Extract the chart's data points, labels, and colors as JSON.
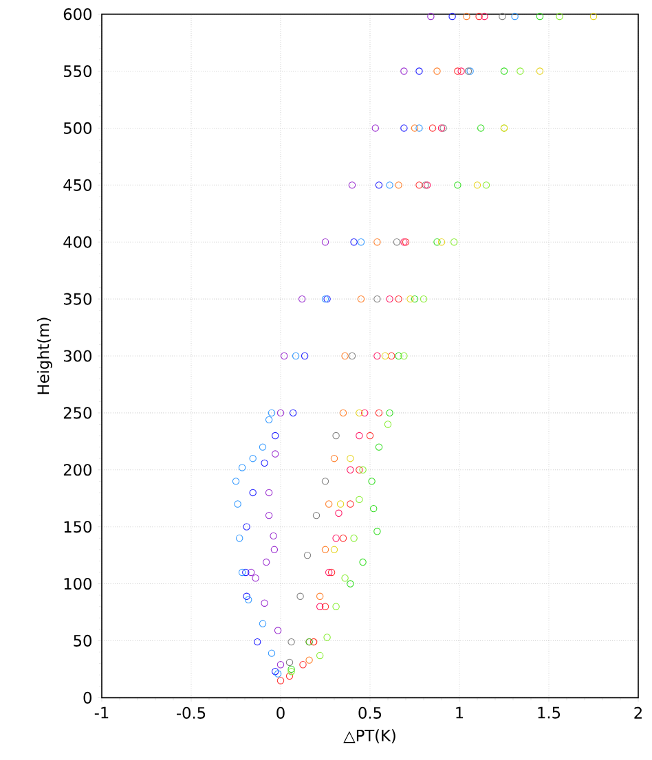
{
  "chart_data": {
    "type": "scatter",
    "xlabel": "△PT(K)",
    "ylabel": "Height(m)",
    "xlim": [
      -1,
      2
    ],
    "xticks": [
      -1,
      -0.5,
      0,
      0.5,
      1,
      1.5,
      2
    ],
    "ylim": [
      0,
      600
    ],
    "yticks": [
      0,
      50,
      100,
      150,
      200,
      250,
      300,
      350,
      400,
      450,
      500,
      550,
      600
    ],
    "grid": true,
    "marker": "circle",
    "series": [
      {
        "color": "#9b30d0",
        "x": [
          0,
          -0.015,
          -0.09,
          -0.14,
          -0.165,
          -0.08,
          -0.035,
          -0.04,
          -0.065,
          -0.065,
          -0.03,
          0,
          0.02,
          0.12,
          0.25,
          0.4,
          0.53,
          0.69,
          0.84
        ],
        "values": [
          29,
          59,
          83,
          105,
          110,
          119,
          130,
          142,
          160,
          180,
          214,
          250,
          300,
          350,
          400,
          450,
          500,
          550,
          598
        ]
      },
      {
        "color": "#2020ff",
        "x": [
          -0.03,
          -0.13,
          -0.19,
          -0.195,
          -0.19,
          -0.155,
          -0.09,
          -0.03,
          0.07,
          0.135,
          0.26,
          0.41,
          0.55,
          0.69,
          0.775,
          0.96
        ],
        "values": [
          23,
          49,
          89,
          110,
          150,
          180,
          206,
          230,
          250,
          300,
          350,
          400,
          450,
          500,
          550,
          598
        ]
      },
      {
        "color": "#3399ff",
        "x": [
          -0.015,
          -0.05,
          -0.1,
          -0.18,
          -0.215,
          -0.23,
          -0.24,
          -0.25,
          -0.215,
          -0.155,
          -0.1,
          -0.065,
          -0.05,
          0.085,
          0.25,
          0.45,
          0.61,
          0.775,
          1.06,
          1.31
        ],
        "values": [
          21,
          39,
          65,
          86,
          110,
          140,
          170,
          190,
          202,
          210,
          220,
          244,
          250,
          300,
          350,
          400,
          450,
          500,
          550,
          598
        ]
      },
      {
        "color": "#ff7f2a",
        "x": [
          0.16,
          0.185,
          0.22,
          0.25,
          0.27,
          0.3,
          0.35,
          0.36,
          0.45,
          0.54,
          0.66,
          0.75,
          0.875,
          1.04
        ],
        "values": [
          33,
          49,
          89,
          130,
          170,
          210,
          250,
          300,
          350,
          400,
          450,
          500,
          550,
          598
        ]
      },
      {
        "color": "#808080",
        "x": [
          0.05,
          0.06,
          0.11,
          0.15,
          0.2,
          0.25,
          0.31,
          0.4,
          0.54,
          0.65,
          0.81,
          0.91,
          1.05,
          1.24
        ],
        "values": [
          31,
          49,
          89,
          125,
          160,
          190,
          230,
          300,
          350,
          400,
          450,
          500,
          550,
          598
        ]
      },
      {
        "color": "#ff3333",
        "x": [
          0,
          0.05,
          0.125,
          0.185,
          0.25,
          0.285,
          0.35,
          0.39,
          0.44,
          0.5,
          0.55,
          0.62,
          0.66,
          0.7,
          0.775,
          0.85,
          0.99,
          1.11
        ],
        "values": [
          15,
          19,
          29,
          49,
          80,
          110,
          140,
          170,
          200,
          230,
          250,
          300,
          350,
          400,
          450,
          500,
          550,
          598
        ]
      },
      {
        "color": "#ff1a66",
        "x": [
          0.16,
          0.22,
          0.27,
          0.31,
          0.325,
          0.39,
          0.44,
          0.47,
          0.54,
          0.61,
          0.69,
          0.82,
          0.9,
          1.01,
          1.14
        ],
        "values": [
          49,
          80,
          110,
          140,
          162,
          200,
          230,
          250,
          300,
          350,
          400,
          450,
          500,
          550,
          598
        ]
      },
      {
        "color": "#33dd22",
        "x": [
          0.06,
          0.16,
          0.39,
          0.46,
          0.54,
          0.52,
          0.51,
          0.55,
          0.61,
          0.66,
          0.75,
          0.875,
          0.99,
          1.12,
          1.25,
          1.45
        ],
        "values": [
          25,
          49,
          100,
          119,
          146,
          166,
          190,
          220,
          250,
          300,
          350,
          400,
          450,
          500,
          550,
          598
        ]
      },
      {
        "color": "#88ee33",
        "x": [
          0.06,
          0.22,
          0.26,
          0.31,
          0.36,
          0.41,
          0.44,
          0.46,
          0.6,
          0.69,
          0.8,
          0.97,
          1.15,
          1.25,
          1.34,
          1.56
        ],
        "values": [
          23,
          37,
          53,
          80,
          105,
          140,
          174,
          200,
          240,
          300,
          350,
          400,
          450,
          500,
          550,
          598
        ]
      },
      {
        "color": "#e6d420",
        "x": [
          0.3,
          0.335,
          0.39,
          0.44,
          0.585,
          0.725,
          0.9,
          1.1,
          1.25,
          1.45,
          1.75
        ],
        "values": [
          130,
          170,
          210,
          250,
          300,
          350,
          400,
          450,
          500,
          550,
          598
        ]
      }
    ]
  }
}
